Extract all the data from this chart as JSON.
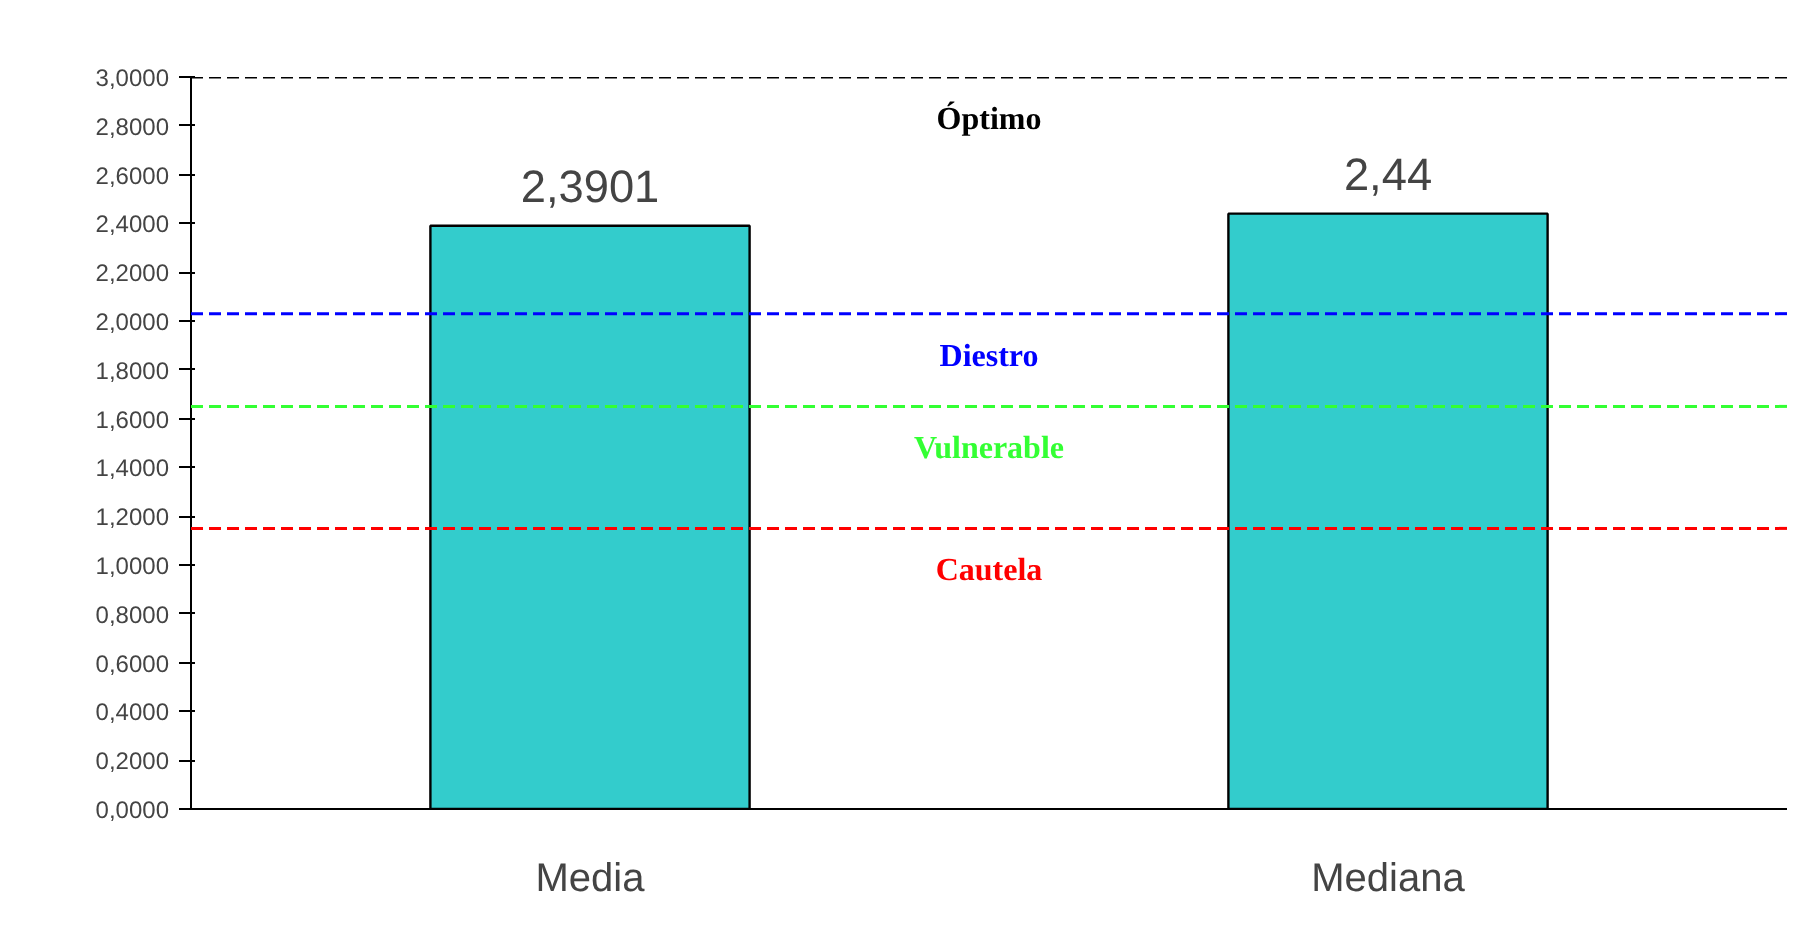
{
  "chart_data": {
    "type": "bar",
    "categories": [
      "Media",
      "Mediana"
    ],
    "values": [
      2.3901,
      2.44
    ],
    "value_labels": [
      "2,3901",
      "2,44"
    ],
    "color": "#33cccc",
    "ylim": [
      0,
      3
    ],
    "yticks": [
      {
        "value": 0,
        "label": "0,0000"
      },
      {
        "value": 0.2,
        "label": "0,2000"
      },
      {
        "value": 0.4,
        "label": "0,4000"
      },
      {
        "value": 0.6,
        "label": "0,6000"
      },
      {
        "value": 0.8,
        "label": "0,8000"
      },
      {
        "value": 1.0,
        "label": "1,0000"
      },
      {
        "value": 1.2,
        "label": "1,2000"
      },
      {
        "value": 1.4,
        "label": "1,4000"
      },
      {
        "value": 1.6,
        "label": "1,6000"
      },
      {
        "value": 1.8,
        "label": "1,8000"
      },
      {
        "value": 2.0,
        "label": "2,0000"
      },
      {
        "value": 2.2,
        "label": "2,2000"
      },
      {
        "value": 2.4,
        "label": "2,4000"
      },
      {
        "value": 2.6,
        "label": "2,6000"
      },
      {
        "value": 2.8,
        "label": "2,8000"
      },
      {
        "value": 3.0,
        "label": "3,0000"
      }
    ],
    "ref_lines": [
      {
        "axis": "y",
        "value": 3.0,
        "label": "Óptimo",
        "color": "#000000",
        "line_style": "dashed"
      },
      {
        "axis": "y",
        "value": 2.03,
        "label": "Diestro",
        "color": "#0000ff",
        "line_style": "dashed"
      },
      {
        "axis": "y",
        "value": 1.65,
        "label": "Vulnerable",
        "color": "#33ff33",
        "line_style": "dashed"
      },
      {
        "axis": "y",
        "value": 1.15,
        "label": "Cautela",
        "color": "#ff0000",
        "line_style": "dashed"
      }
    ],
    "grid": false
  }
}
